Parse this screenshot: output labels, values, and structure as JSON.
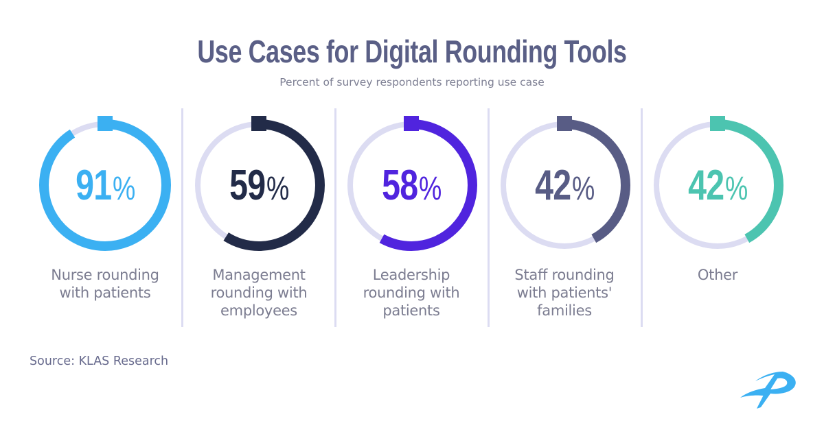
{
  "header": {
    "title": "Use Cases for Digital Rounding Tools",
    "subtitle": "Percent of survey respondents reporting use case"
  },
  "track_color": "#dcdcf2",
  "items": [
    {
      "value": 91,
      "num": "91",
      "sign": "%",
      "label": "Nurse rounding\nwith patients",
      "color": "#3bb0f2"
    },
    {
      "value": 59,
      "num": "59",
      "sign": "%",
      "label": "Management\nrounding with\nemployees",
      "color": "#222b48"
    },
    {
      "value": 58,
      "num": "58",
      "sign": "%",
      "label": "Leadership\nrounding with\npatients",
      "color": "#5024de"
    },
    {
      "value": 42,
      "num": "42",
      "sign": "%",
      "label": "Staff rounding\nwith patients'\nfamilies",
      "color": "#585c85"
    },
    {
      "value": 42,
      "num": "42",
      "sign": "%",
      "label": "Other",
      "color": "#4cc4b0"
    }
  ],
  "footer": {
    "source": "Source: KLAS Research",
    "logo_icon": "brand-logo-icon",
    "logo_color": "#3bb0f2"
  },
  "chart_data": {
    "type": "pie",
    "subtype": "radial-progress (donut gauges)",
    "title": "Use Cases for Digital Rounding Tools",
    "subtitle": "Percent of survey respondents reporting use case",
    "categories": [
      "Nurse rounding with patients",
      "Management rounding with employees",
      "Leadership rounding with patients",
      "Staff rounding with patients' families",
      "Other"
    ],
    "values": [
      91,
      59,
      58,
      42,
      42
    ],
    "unit": "%",
    "range": [
      0,
      100
    ],
    "colors": [
      "#3bb0f2",
      "#222b48",
      "#5024de",
      "#585c85",
      "#4cc4b0"
    ],
    "source": "Source: KLAS Research"
  }
}
